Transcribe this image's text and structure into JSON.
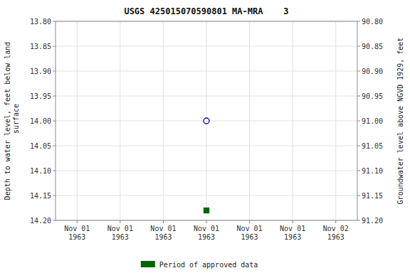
{
  "chart_data": {
    "type": "scatter",
    "title": "USGS 425015070590801 MA-MRA    3",
    "y_label": "Depth to water level, feet below land\n surface",
    "y2_label": "Groundwater level above NGVD 1929, feet",
    "categories": [
      "Nov 01\n1963",
      "Nov 01\n1963",
      "Nov 01\n1963",
      "Nov 01\n1963",
      "Nov 01\n1963",
      "Nov 01\n1963",
      "Nov 02\n1963"
    ],
    "series": [
      {
        "color": "#0000cc",
        "marker": "circle-open",
        "values": [
          null,
          null,
          null,
          14.0,
          null,
          null,
          null
        ]
      },
      {
        "name": "Period of approved data",
        "color": "#006400",
        "marker": "square",
        "values": [
          null,
          null,
          null,
          14.18,
          null,
          null,
          null
        ]
      }
    ],
    "ylim": [
      14.2,
      13.8
    ],
    "yticks": [
      {
        "value": 13.8,
        "label": "13.80"
      },
      {
        "value": 13.85,
        "label": "13.85"
      },
      {
        "value": 13.9,
        "label": "13.90"
      },
      {
        "value": 13.95,
        "label": "13.95"
      },
      {
        "value": 14.0,
        "label": "14.00"
      },
      {
        "value": 14.05,
        "label": "14.05"
      },
      {
        "value": 14.1,
        "label": "14.10"
      },
      {
        "value": 14.15,
        "label": "14.15"
      },
      {
        "value": 14.2,
        "label": "14.20"
      }
    ],
    "y2lim": [
      91.2,
      90.8
    ],
    "y2ticks": [
      {
        "value": 90.8,
        "label": "90.80"
      },
      {
        "value": 90.85,
        "label": "90.85"
      },
      {
        "value": 90.9,
        "label": "90.90"
      },
      {
        "value": 90.95,
        "label": "90.95"
      },
      {
        "value": 91.0,
        "label": "91.00"
      },
      {
        "value": 91.05,
        "label": "91.05"
      },
      {
        "value": 91.1,
        "label": "91.10"
      },
      {
        "value": 91.15,
        "label": "91.15"
      },
      {
        "value": 91.2,
        "label": "91.20"
      }
    ],
    "grid": true,
    "legend": "bottom"
  }
}
